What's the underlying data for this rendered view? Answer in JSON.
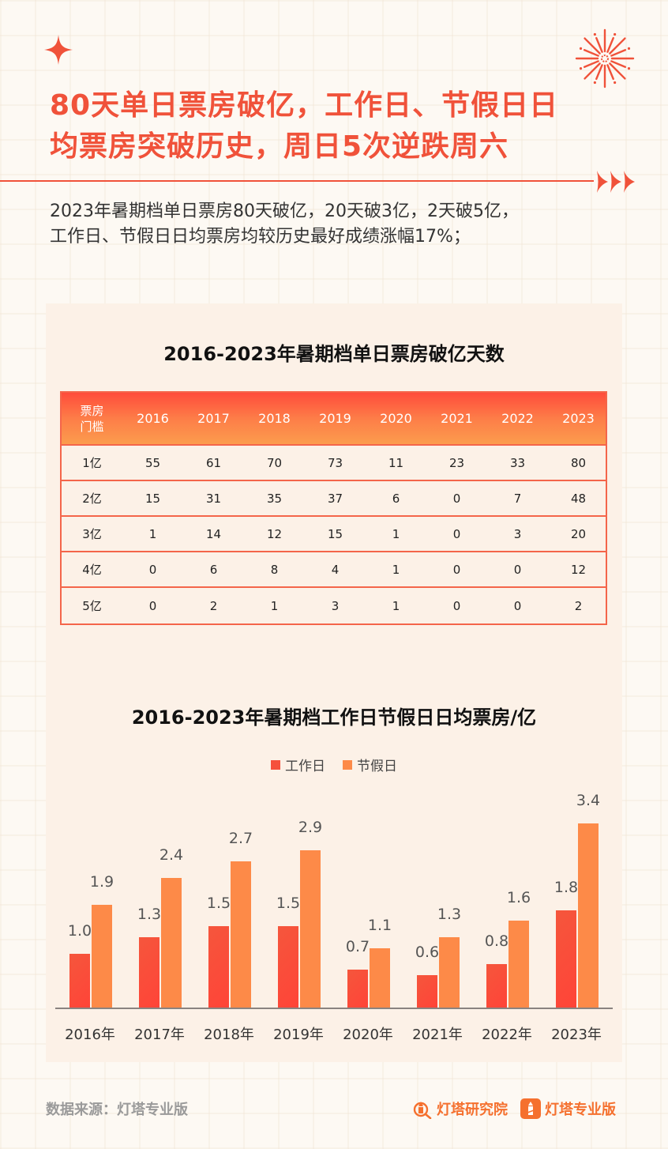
{
  "header": {
    "headline_line1": "80天单日票房破亿，工作日、节假日日",
    "headline_line2": "均票房突破历史，周日5次逆跌周六",
    "subtitle_line1": "2023年暑期档单日票房80天破亿，20天破3亿，2天破5亿，",
    "subtitle_line2": "工作日、节假日日均票房均较历史最好成绩涨幅17%；",
    "icons": [
      "sparkle-icon",
      "firework-icon",
      "triple-arrow-icon"
    ]
  },
  "colors": {
    "accent": "#f0523a",
    "work_bar": "#f5503c",
    "holiday_bar": "#fd8a48",
    "panel_bg": "#fcf1e7",
    "table_border": "#f4654a"
  },
  "table": {
    "title": "2016-2023年暑期档单日票房破亿天数",
    "header_first_line1": "票房",
    "header_first_line2": "门槛",
    "years": [
      "2016",
      "2017",
      "2018",
      "2019",
      "2020",
      "2021",
      "2022",
      "2023"
    ],
    "rows": [
      {
        "label": "1亿",
        "values": [
          "55",
          "61",
          "70",
          "73",
          "11",
          "23",
          "33",
          "80"
        ]
      },
      {
        "label": "2亿",
        "values": [
          "15",
          "31",
          "35",
          "37",
          "6",
          "0",
          "7",
          "48"
        ]
      },
      {
        "label": "3亿",
        "values": [
          "1",
          "14",
          "12",
          "15",
          "1",
          "0",
          "3",
          "20"
        ]
      },
      {
        "label": "4亿",
        "values": [
          "0",
          "6",
          "8",
          "4",
          "1",
          "0",
          "0",
          "12"
        ]
      },
      {
        "label": "5亿",
        "values": [
          "0",
          "2",
          "1",
          "3",
          "1",
          "0",
          "0",
          "2"
        ]
      }
    ]
  },
  "chart_data": [
    {
      "type": "table",
      "title": "2016-2023年暑期档单日票房破亿天数",
      "columns": [
        "票房门槛",
        "2016",
        "2017",
        "2018",
        "2019",
        "2020",
        "2021",
        "2022",
        "2023"
      ],
      "rows": [
        [
          "1亿",
          55,
          61,
          70,
          73,
          11,
          23,
          33,
          80
        ],
        [
          "2亿",
          15,
          31,
          35,
          37,
          6,
          0,
          7,
          48
        ],
        [
          "3亿",
          1,
          14,
          12,
          15,
          1,
          0,
          3,
          20
        ],
        [
          "4亿",
          0,
          6,
          8,
          4,
          1,
          0,
          0,
          12
        ],
        [
          "5亿",
          0,
          2,
          1,
          3,
          1,
          0,
          0,
          2
        ]
      ]
    },
    {
      "type": "bar",
      "title": "2016-2023年暑期档工作日节假日日均票房/亿",
      "categories": [
        "2016年",
        "2017年",
        "2018年",
        "2019年",
        "2020年",
        "2021年",
        "2022年",
        "2023年"
      ],
      "series": [
        {
          "name": "工作日",
          "values": [
            1.0,
            1.3,
            1.5,
            1.5,
            0.7,
            0.6,
            0.8,
            1.8
          ],
          "labels": [
            "1.0",
            "1.3",
            "1.5",
            "1.5",
            "0.7",
            "0.6",
            "0.8",
            "1.8"
          ]
        },
        {
          "name": "节假日",
          "values": [
            1.9,
            2.4,
            2.7,
            2.9,
            1.1,
            1.3,
            1.6,
            3.4
          ],
          "labels": [
            "1.9",
            "2.4",
            "2.7",
            "2.9",
            "1.1",
            "1.3",
            "1.6",
            "3.4"
          ]
        }
      ],
      "xlabel": "",
      "ylabel": "",
      "ylim": [
        0,
        3.6
      ],
      "grid": false,
      "legend_position": "top"
    }
  ],
  "footer": {
    "source": "数据来源：灯塔专业版",
    "brand1": "灯塔研究院",
    "brand2": "灯塔专业版"
  }
}
